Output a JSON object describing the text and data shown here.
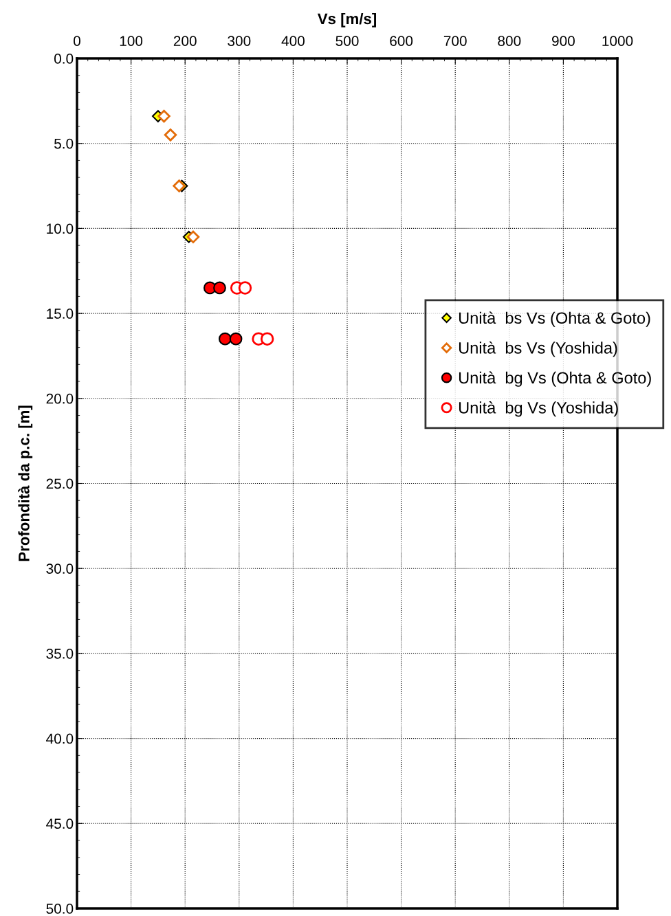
{
  "chart_data": {
    "type": "scatter",
    "xlabel": "Vs [m/s]",
    "ylabel": "Profondità da p.c. [m]",
    "xlim": [
      0,
      1000
    ],
    "xticks": [
      0,
      100,
      200,
      300,
      400,
      500,
      600,
      700,
      800,
      900,
      1000
    ],
    "ylim": [
      50,
      0
    ],
    "yticks": [
      {
        "value": 0,
        "label": "0.0"
      },
      {
        "value": 5,
        "label": "5.0"
      },
      {
        "value": 10,
        "label": "10.0"
      },
      {
        "value": 15,
        "label": "15.0"
      },
      {
        "value": 20,
        "label": "20.0"
      },
      {
        "value": 25,
        "label": "25.0"
      },
      {
        "value": 30,
        "label": "30.0"
      },
      {
        "value": 35,
        "label": "35.0"
      },
      {
        "value": 40,
        "label": "40.0"
      },
      {
        "value": 45,
        "label": "45.0"
      },
      {
        "value": 50,
        "label": "50.0"
      }
    ],
    "grid": true,
    "legend": "right",
    "series": [
      {
        "name": "Unità  bs Vs (Ohta & Goto)",
        "color": "#ffff00",
        "marker": "diamond",
        "x": [
          150,
          null,
          194,
          207
        ],
        "values": [
          3.4,
          null,
          7.5,
          10.5
        ]
      },
      {
        "name": "Unità  bs Vs (Yoshida)",
        "color": "#e36c09",
        "marker": "diamond",
        "x": [
          161,
          173,
          189,
          215
        ],
        "values": [
          3.4,
          4.5,
          7.5,
          10.5
        ]
      },
      {
        "name": "Unità  bg Vs (Ohta & Goto)",
        "color": "#ff0000",
        "marker": "circle",
        "x": [
          246,
          264,
          274,
          294
        ],
        "values": [
          13.5,
          13.5,
          16.5,
          16.5
        ]
      },
      {
        "name": "Unità  bg Vs (Yoshida)",
        "color": "#ff0000",
        "marker": "circle",
        "x": [
          296,
          311,
          336,
          352
        ],
        "values": [
          13.5,
          13.5,
          16.5,
          16.5
        ]
      }
    ]
  }
}
